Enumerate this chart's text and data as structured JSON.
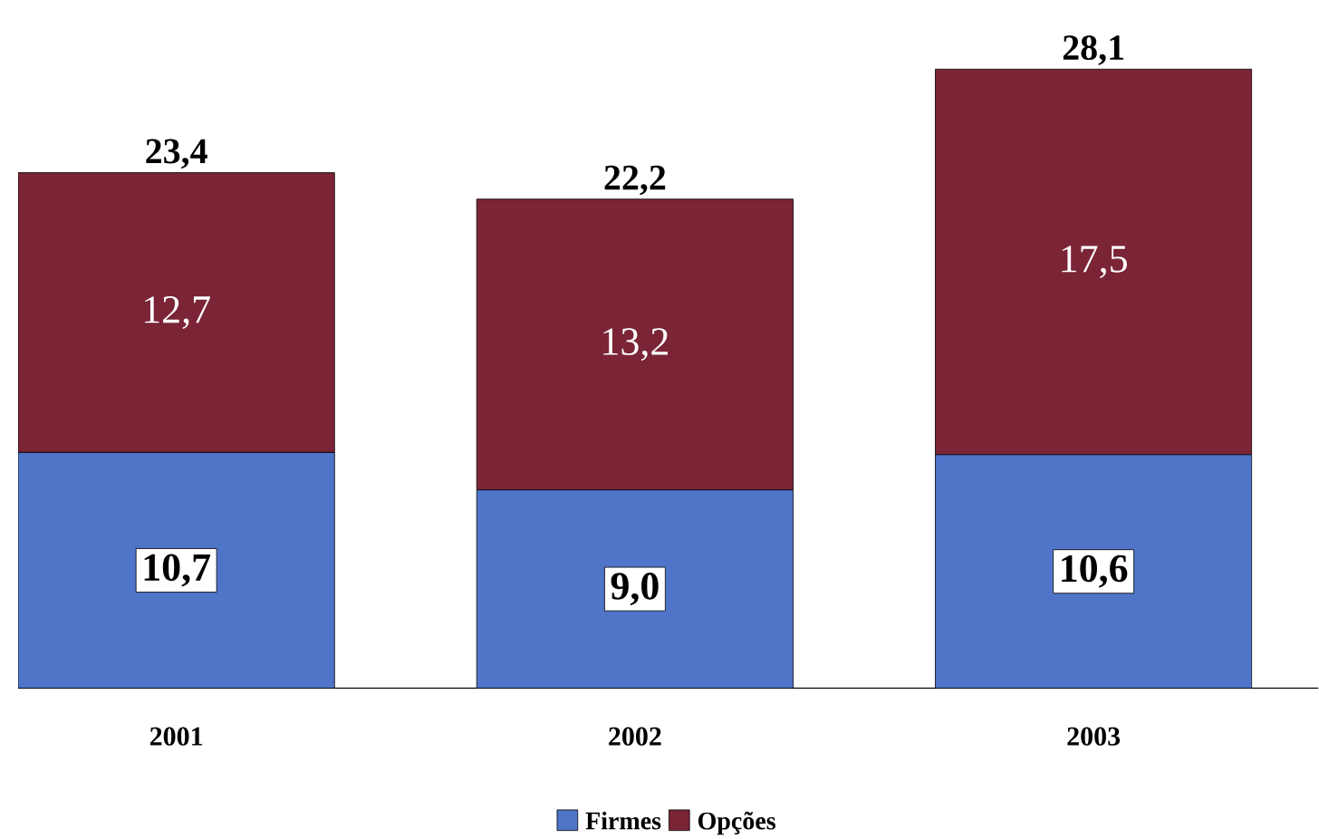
{
  "chart_data": {
    "type": "bar",
    "stacked": true,
    "categories": [
      "2001",
      "2002",
      "2003"
    ],
    "series": [
      {
        "name": "Firmes",
        "color": "#4f74c8",
        "values": [
          10.7,
          9.0,
          10.6
        ],
        "value_labels": [
          "10,7",
          "9,0",
          "10,6"
        ]
      },
      {
        "name": "Opções",
        "color": "#7a2436",
        "values": [
          12.7,
          13.2,
          17.5
        ],
        "value_labels": [
          "12,7",
          "13,2",
          "17,5"
        ]
      }
    ],
    "totals": [
      "23,4",
      "22,2",
      "28,1"
    ],
    "legend": "bottom"
  }
}
